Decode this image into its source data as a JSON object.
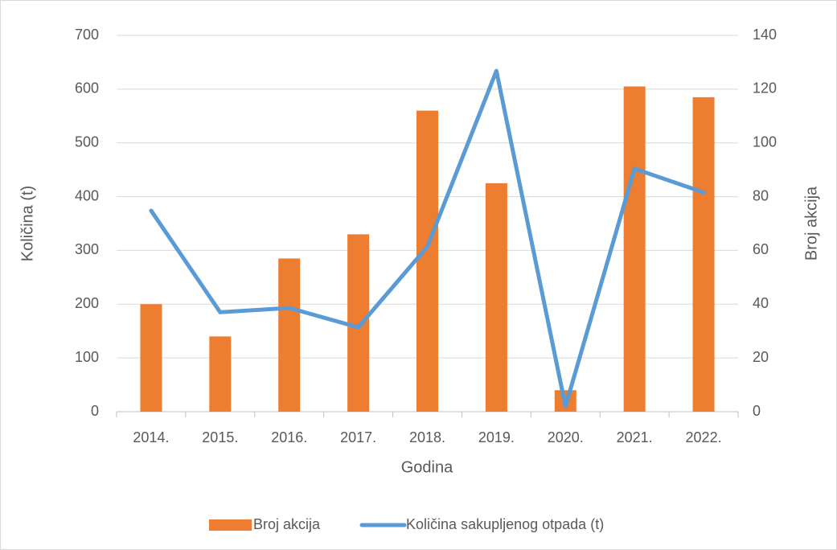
{
  "chart_data": {
    "type": "bar",
    "categories": [
      "2014.",
      "2015.",
      "2016.",
      "2017.",
      "2018.",
      "2019.",
      "2020.",
      "2021.",
      "2022."
    ],
    "series": [
      {
        "name": "Broj akcija",
        "type": "bar",
        "axis": "y2",
        "color": "#ed7d31",
        "values": [
          40,
          28,
          57,
          66,
          112,
          85,
          8,
          121,
          117
        ]
      },
      {
        "name": "Količina sakupljenog otpada (t)",
        "type": "line",
        "axis": "y",
        "color": "#5b9bd5",
        "values": [
          374,
          185,
          193,
          157,
          307,
          634,
          10,
          452,
          408
        ]
      }
    ],
    "xlabel": "Godina",
    "ylabel": "Količina (t)",
    "y2label": "Broj akcija",
    "ylim": [
      0,
      700
    ],
    "yticks": [
      0,
      100,
      200,
      300,
      400,
      500,
      600,
      700
    ],
    "y2lim": [
      0,
      140
    ],
    "y2ticks": [
      0,
      20,
      40,
      60,
      80,
      100,
      120,
      140
    ],
    "grid": true,
    "legend": "bottom"
  }
}
